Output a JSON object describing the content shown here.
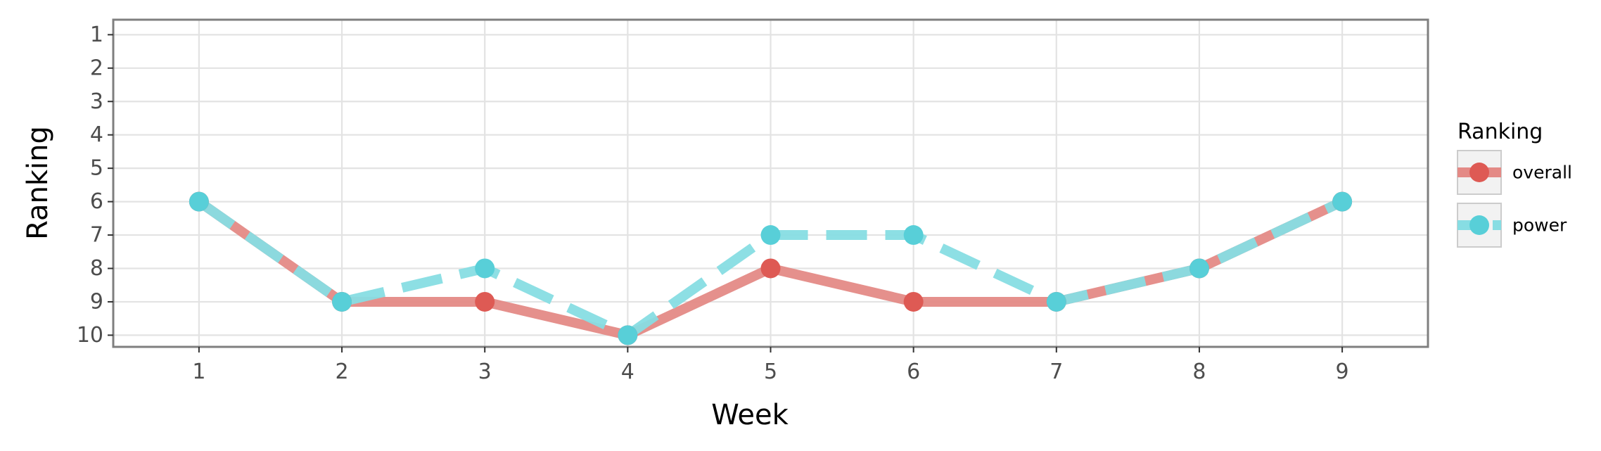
{
  "chart_data": {
    "type": "line",
    "xlabel": "Week",
    "ylabel": "Ranking",
    "x": [
      1,
      2,
      3,
      4,
      5,
      6,
      7,
      8,
      9
    ],
    "xlim": [
      0.4,
      9.6
    ],
    "ylim": [
      10.35,
      0.55
    ],
    "y_reversed": true,
    "xticks": [
      1,
      2,
      3,
      4,
      5,
      6,
      7,
      8,
      9
    ],
    "yticks": [
      1,
      2,
      3,
      4,
      5,
      6,
      7,
      8,
      9,
      10
    ],
    "grid": true,
    "legend": {
      "title": "Ranking",
      "placement": "right",
      "entries": [
        "overall",
        "power"
      ]
    },
    "series": [
      {
        "name": "overall",
        "values": [
          6,
          9,
          9,
          10,
          8,
          9,
          9,
          8,
          6
        ],
        "line_color": "#e48a86",
        "point_color": "#de5a54",
        "line_style": "solid"
      },
      {
        "name": "power",
        "values": [
          6,
          9,
          8,
          10,
          7,
          7,
          9,
          8,
          6
        ],
        "line_color": "#87dde3",
        "point_color": "#58cfd8",
        "line_style": "dashed"
      }
    ]
  }
}
